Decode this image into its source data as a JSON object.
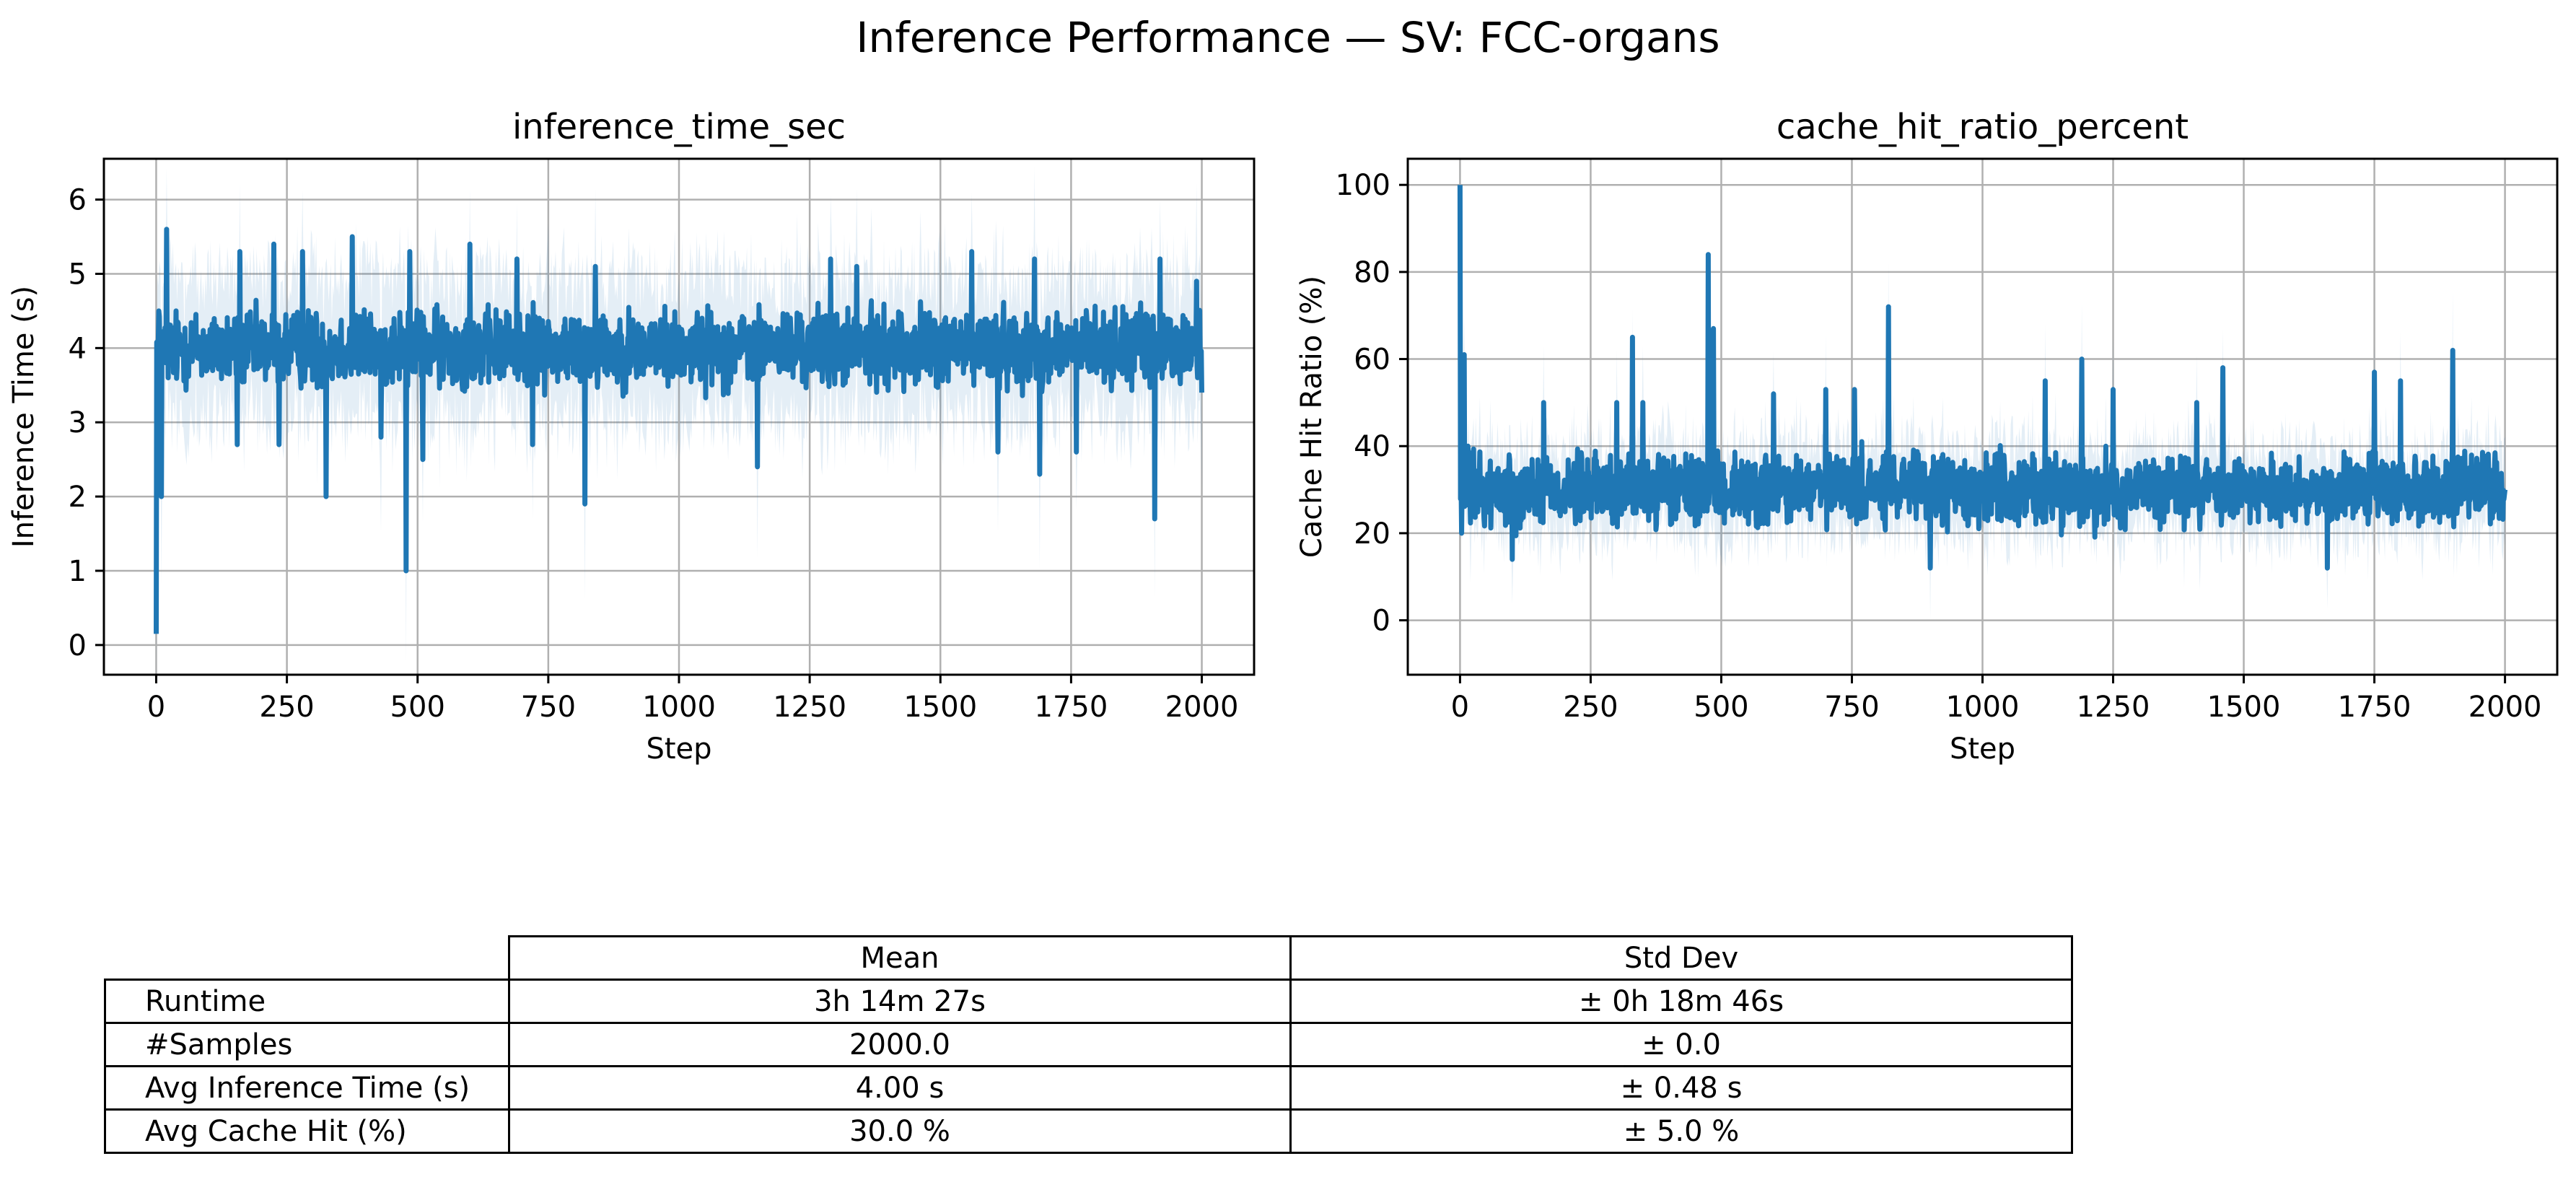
{
  "figure": {
    "suptitle": "Inference Performance — SV: FCC-organs"
  },
  "colors": {
    "line": "#1f77b4",
    "band": "#1f77b4",
    "grid": "#b0b0b0",
    "axis": "#000000"
  },
  "chart_data": [
    {
      "type": "line",
      "title": "inference_time_sec",
      "xlabel": "Step",
      "ylabel": "Inference Time (s)",
      "xlim": [
        -100,
        2100
      ],
      "ylim": [
        -0.4,
        6.55
      ],
      "xticks": [
        0,
        250,
        500,
        750,
        1000,
        1250,
        1500,
        1750,
        2000
      ],
      "yticks": [
        0,
        1,
        2,
        3,
        4,
        5,
        6
      ],
      "grid": true,
      "n_steps": 2000,
      "series": [
        {
          "style": "mean line with shaded std band",
          "baseline_mean": 4.0,
          "fluctuation_range": [
            3.3,
            4.8
          ],
          "band_std": 0.48,
          "notable_points": [
            {
              "x": 0,
              "y": 0.15
            },
            {
              "x": 5,
              "y": 4.5
            },
            {
              "x": 10,
              "y": 2.0
            },
            {
              "x": 20,
              "y": 5.6
            },
            {
              "x": 155,
              "y": 2.7
            },
            {
              "x": 160,
              "y": 5.3
            },
            {
              "x": 225,
              "y": 5.4
            },
            {
              "x": 235,
              "y": 2.7
            },
            {
              "x": 280,
              "y": 5.3
            },
            {
              "x": 325,
              "y": 2.0
            },
            {
              "x": 375,
              "y": 5.5
            },
            {
              "x": 430,
              "y": 2.8
            },
            {
              "x": 478,
              "y": 1.0
            },
            {
              "x": 485,
              "y": 5.3
            },
            {
              "x": 510,
              "y": 2.5
            },
            {
              "x": 600,
              "y": 5.4
            },
            {
              "x": 690,
              "y": 5.2
            },
            {
              "x": 720,
              "y": 2.7
            },
            {
              "x": 820,
              "y": 1.9
            },
            {
              "x": 840,
              "y": 5.1
            },
            {
              "x": 1150,
              "y": 2.4
            },
            {
              "x": 1290,
              "y": 5.2
            },
            {
              "x": 1340,
              "y": 5.1
            },
            {
              "x": 1560,
              "y": 5.3
            },
            {
              "x": 1610,
              "y": 2.6
            },
            {
              "x": 1680,
              "y": 5.2
            },
            {
              "x": 1690,
              "y": 2.3
            },
            {
              "x": 1760,
              "y": 2.6
            },
            {
              "x": 1910,
              "y": 1.7
            },
            {
              "x": 1920,
              "y": 5.2
            },
            {
              "x": 1990,
              "y": 4.9
            },
            {
              "x": 2000,
              "y": 3.4
            }
          ]
        }
      ]
    },
    {
      "type": "line",
      "title": "cache_hit_ratio_percent",
      "xlabel": "Step",
      "ylabel": "Cache Hit Ratio (%)",
      "xlim": [
        -100,
        2100
      ],
      "ylim": [
        -12.5,
        106
      ],
      "xticks": [
        0,
        250,
        500,
        750,
        1000,
        1250,
        1500,
        1750,
        2000
      ],
      "yticks": [
        0,
        20,
        40,
        60,
        80,
        100
      ],
      "grid": true,
      "n_steps": 2000,
      "series": [
        {
          "style": "mean line with shaded std band",
          "baseline_mean": 30.0,
          "fluctuation_range": [
            18,
            42
          ],
          "band_std": 5.0,
          "notable_points": [
            {
              "x": 0,
              "y": 100.0
            },
            {
              "x": 3,
              "y": 20.0
            },
            {
              "x": 8,
              "y": 61.0
            },
            {
              "x": 15,
              "y": 40.0
            },
            {
              "x": 100,
              "y": 14.0
            },
            {
              "x": 160,
              "y": 50.0
            },
            {
              "x": 300,
              "y": 50.0
            },
            {
              "x": 330,
              "y": 65.0
            },
            {
              "x": 350,
              "y": 50.0
            },
            {
              "x": 475,
              "y": 84.0
            },
            {
              "x": 485,
              "y": 67.0
            },
            {
              "x": 600,
              "y": 52.0
            },
            {
              "x": 700,
              "y": 53.0
            },
            {
              "x": 755,
              "y": 53.0
            },
            {
              "x": 820,
              "y": 72.0
            },
            {
              "x": 900,
              "y": 12.0
            },
            {
              "x": 1120,
              "y": 55.0
            },
            {
              "x": 1190,
              "y": 60.0
            },
            {
              "x": 1250,
              "y": 53.0
            },
            {
              "x": 1410,
              "y": 50.0
            },
            {
              "x": 1460,
              "y": 58.0
            },
            {
              "x": 1660,
              "y": 12.0
            },
            {
              "x": 1750,
              "y": 57.0
            },
            {
              "x": 1800,
              "y": 55.0
            },
            {
              "x": 1900,
              "y": 62.0
            },
            {
              "x": 2000,
              "y": 30.0
            }
          ]
        }
      ]
    }
  ],
  "table": {
    "columns": [
      "Mean",
      "Std Dev"
    ],
    "rows": [
      {
        "label": "Runtime",
        "mean": "3h 14m 27s",
        "std": "± 0h 18m 46s"
      },
      {
        "label": "#Samples",
        "mean": "2000.0",
        "std": "± 0.0"
      },
      {
        "label": "Avg Inference Time (s)",
        "mean": "4.00 s",
        "std": "± 0.48 s"
      },
      {
        "label": "Avg Cache Hit (%)",
        "mean": "30.0 %",
        "std": "± 5.0 %"
      }
    ]
  }
}
